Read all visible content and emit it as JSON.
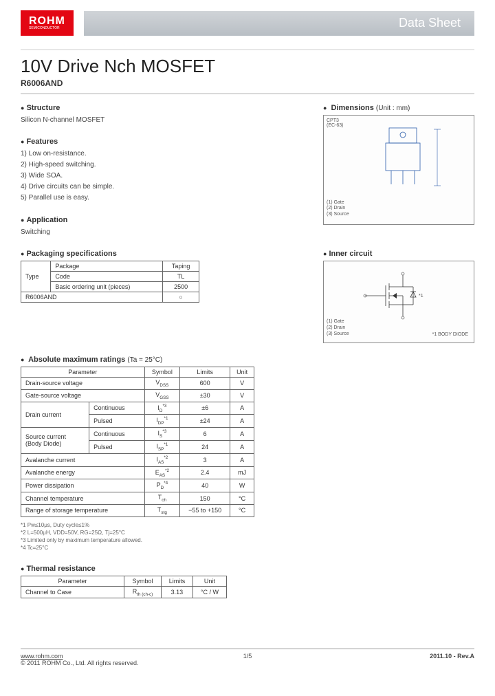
{
  "header": {
    "logo": "ROHM",
    "logo_sub": "SEMICONDUCTOR",
    "banner": "Data Sheet"
  },
  "title": "10V Drive Nch MOSFET",
  "part_number": "R6006AND",
  "structure": {
    "heading": "Structure",
    "text": "Silicon N-channel MOSFET"
  },
  "features": {
    "heading": "Features",
    "items": [
      "1) Low on-resistance.",
      "2) High-speed switching.",
      "3) Wide SOA.",
      "4) Drive circuits can be simple.",
      "5) Parallel use is easy."
    ]
  },
  "application": {
    "heading": "Application",
    "text": "Switching"
  },
  "dimensions": {
    "heading": "Dimensions",
    "unit_note": "(Unit : mm)",
    "package_label": "CPT3\n(EC-63)",
    "pins": "(1) Gate\n(2) Drain\n(3) Source"
  },
  "inner_circuit": {
    "heading": "Inner circuit",
    "pins": "(1) Gate\n(2) Drain\n(3) Source",
    "body_diode": "*1 BODY DIODE"
  },
  "packaging": {
    "heading": "Packaging specifications",
    "cols": {
      "type": "Type",
      "package": "Package",
      "taping": "Taping",
      "code": "Code",
      "tl": "TL",
      "basic": "Basic ordering unit (pieces)",
      "qty": "2500",
      "part": "R6006AND",
      "mark": "○"
    }
  },
  "ratings": {
    "heading": "Absolute maximum ratings",
    "cond": "(Ta = 25°C)",
    "headers": {
      "param": "Parameter",
      "symbol": "Symbol",
      "limits": "Limits",
      "unit": "Unit"
    },
    "rows": [
      {
        "p": "Drain-source voltage",
        "s": "V",
        "sub": "DSS",
        "l": "600",
        "u": "V"
      },
      {
        "p": "Gate-source voltage",
        "s": "V",
        "sub": "GSS",
        "l": "±30",
        "u": "V"
      },
      {
        "p": "Drain current",
        "p2": "Continuous",
        "s": "I",
        "sub": "D",
        "sup": "*3",
        "l": "±6",
        "u": "A"
      },
      {
        "p": "",
        "p2": "Pulsed",
        "s": "I",
        "sub": "DP",
        "sup": "*1",
        "l": "±24",
        "u": "A"
      },
      {
        "p": "Source current\n(Body Diode)",
        "p2": "Continuous",
        "s": "I",
        "sub": "S",
        "sup": "*3",
        "l": "6",
        "u": "A"
      },
      {
        "p": "",
        "p2": "Pulsed",
        "s": "I",
        "sub": "SP",
        "sup": "*1",
        "l": "24",
        "u": "A"
      },
      {
        "p": "Avalanche current",
        "s": "I",
        "sub": "AS",
        "sup": "*2",
        "l": "3",
        "u": "A"
      },
      {
        "p": "Avalanche energy",
        "s": "E",
        "sub": "AS",
        "sup": "*2",
        "l": "2.4",
        "u": "mJ"
      },
      {
        "p": "Power dissipation",
        "s": "P",
        "sub": "D",
        "sup": "*4",
        "l": "40",
        "u": "W"
      },
      {
        "p": "Channel temperature",
        "s": "T",
        "sub": "ch",
        "l": "150",
        "u": "°C"
      },
      {
        "p": "Range of storage temperature",
        "s": "T",
        "sub": "stg",
        "l": "−55 to +150",
        "u": "°C"
      }
    ],
    "notes": [
      "*1 Pw≤10μs, Duty cycle≤1%",
      "*2 L=500μH, VDD=50V, RG=25Ω, Tj=25°C",
      "*3 Limited only by maximum temperature allowed.",
      "*4 Tc=25°C"
    ]
  },
  "thermal": {
    "heading": "Thermal resistance",
    "headers": {
      "param": "Parameter",
      "symbol": "Symbol",
      "limits": "Limits",
      "unit": "Unit"
    },
    "rows": [
      {
        "p": "Channel to Case",
        "s": "R",
        "sub": "th (ch-c)",
        "l": "3.13",
        "u": "°C / W"
      }
    ]
  },
  "footer": {
    "url": "www.rohm.com",
    "copyright": "© 2011  ROHM Co., Ltd. All rights reserved.",
    "page": "1/5",
    "rev": "2011.10  -  Rev.A"
  }
}
